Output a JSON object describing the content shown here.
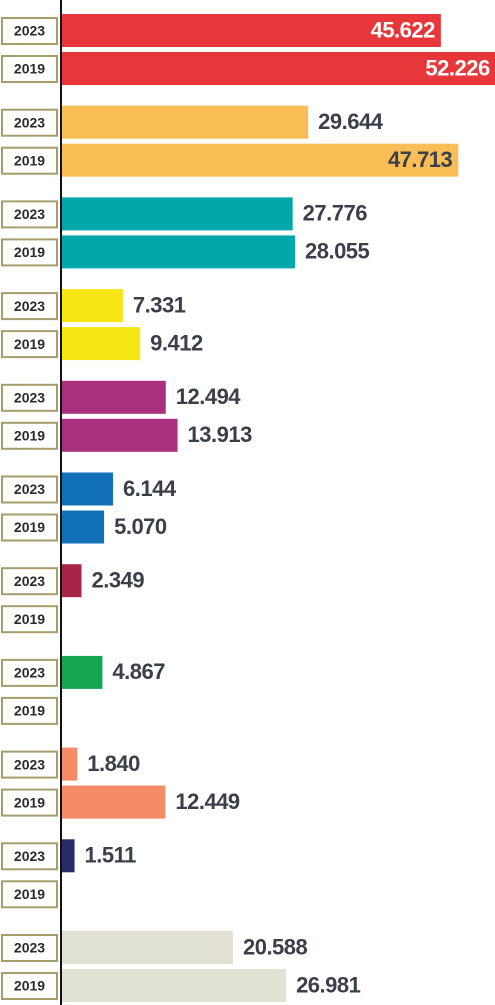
{
  "chart_data": {
    "type": "bar",
    "orientation": "horizontal",
    "categories": [
      null,
      null,
      null,
      null,
      null,
      null,
      null,
      null,
      null,
      null,
      null
    ],
    "colors": [
      "#e8373a",
      "#fbbd55",
      "#00a8ac",
      "#f5e614",
      "#a8307f",
      "#1170b8",
      "#a8254a",
      "#16a651",
      "#f68b67",
      "#2a2a6a",
      "#e2e2d4"
    ],
    "series": [
      {
        "name": "2023",
        "values": [
          45.622,
          29.644,
          27.776,
          7.331,
          12.494,
          6.144,
          2.349,
          4.867,
          1.84,
          1.511,
          20.588
        ],
        "value_labels": [
          "45.622",
          "29.644",
          "27.776",
          "7.331",
          "12.494",
          "6.144",
          "2.349",
          "4.867",
          "1.840",
          "1.511",
          "20.588"
        ]
      },
      {
        "name": "2019",
        "values": [
          52.226,
          47.713,
          28.055,
          9.412,
          13.913,
          5.07,
          null,
          null,
          12.449,
          null,
          26.981
        ],
        "value_labels": [
          "52.226",
          "47.713",
          "28.055",
          "9.412",
          "13.913",
          "5.070",
          null,
          null,
          "12.449",
          null,
          "26.981"
        ]
      }
    ],
    "xlim": [
      0,
      52.5
    ]
  }
}
